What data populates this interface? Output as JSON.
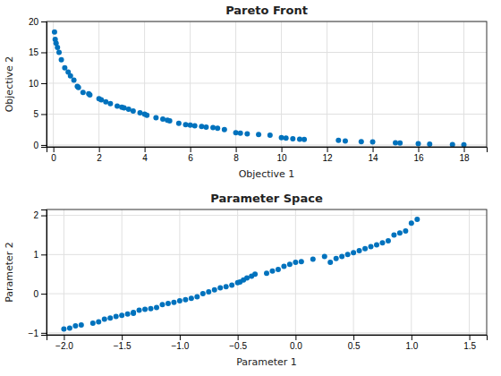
{
  "chart_data": [
    {
      "type": "scatter",
      "title": "Pareto Front",
      "xlabel": "Objective 1",
      "ylabel": "Objective 2",
      "color": "#0072BD",
      "grid": true,
      "xlim": [
        -0.3,
        19.0
      ],
      "ylim": [
        -0.3,
        20.0
      ],
      "xticks": [
        0,
        2,
        4,
        6,
        8,
        10,
        12,
        14,
        16,
        18
      ],
      "yticks": [
        0,
        5,
        10,
        15,
        20
      ],
      "x": [
        0.05,
        0.08,
        0.12,
        0.18,
        0.25,
        0.35,
        0.5,
        0.65,
        0.75,
        0.9,
        1.05,
        1.1,
        1.3,
        1.55,
        1.6,
        2.0,
        2.1,
        2.3,
        2.5,
        2.8,
        3.0,
        3.1,
        3.3,
        3.5,
        3.8,
        4.0,
        4.1,
        4.5,
        4.8,
        5.0,
        5.1,
        5.5,
        5.8,
        6.0,
        6.2,
        6.5,
        6.7,
        7.0,
        7.2,
        7.5,
        8.0,
        8.2,
        8.5,
        9.0,
        9.5,
        10.0,
        10.2,
        10.5,
        10.8,
        11.0,
        12.5,
        12.8,
        13.5,
        14.0,
        15.0,
        15.2,
        16.0,
        16.5,
        17.5,
        18.0
      ],
      "values": [
        18.3,
        17.1,
        16.5,
        15.8,
        15.0,
        13.8,
        12.5,
        11.8,
        11.2,
        10.5,
        9.5,
        9.3,
        8.5,
        8.3,
        8.1,
        7.5,
        7.3,
        7.0,
        6.7,
        6.3,
        6.1,
        6.0,
        5.8,
        5.5,
        5.2,
        5.0,
        4.8,
        4.4,
        4.2,
        4.0,
        3.9,
        3.5,
        3.3,
        3.2,
        3.1,
        3.0,
        2.9,
        2.8,
        2.7,
        2.5,
        2.0,
        1.9,
        1.8,
        1.7,
        1.6,
        1.2,
        1.1,
        1.0,
        0.95,
        0.9,
        0.75,
        0.65,
        0.55,
        0.5,
        0.35,
        0.3,
        0.2,
        0.15,
        0.05,
        0.04
      ]
    },
    {
      "type": "scatter",
      "title": "Parameter Space",
      "xlabel": "Parameter 1",
      "ylabel": "Parameter 2",
      "color": "#0072BD",
      "grid": true,
      "xlim": [
        -2.15,
        1.65
      ],
      "ylim": [
        -1.05,
        2.15
      ],
      "xticks": [
        {
          "value": -2.0,
          "label": "−2.0"
        },
        {
          "value": -1.5,
          "label": "−1.5"
        },
        {
          "value": -1.0,
          "label": "−1.0"
        },
        {
          "value": -0.5,
          "label": "−0.5"
        },
        {
          "value": 0.0,
          "label": "0.0"
        },
        0.5,
        {
          "value": 1.0,
          "label": "1.0"
        },
        {
          "value": 1.5,
          "label": "1.5"
        }
      ],
      "yticks": [
        {
          "value": -1,
          "label": "−1"
        },
        0,
        1,
        2
      ],
      "x": [
        -2.0,
        -1.95,
        -1.9,
        -1.85,
        -1.75,
        -1.7,
        -1.65,
        -1.6,
        -1.55,
        -1.5,
        -1.45,
        -1.4,
        -1.4,
        -1.35,
        -1.3,
        -1.25,
        -1.2,
        -1.15,
        -1.1,
        -1.05,
        -1.0,
        -0.95,
        -0.9,
        -0.85,
        -0.8,
        -0.75,
        -0.7,
        -0.65,
        -0.6,
        -0.55,
        -0.5,
        -0.48,
        -0.45,
        -0.42,
        -0.38,
        -0.35,
        -0.25,
        -0.2,
        -0.15,
        -0.1,
        -0.05,
        0.0,
        0.05,
        0.15,
        0.25,
        0.3,
        0.35,
        0.4,
        0.45,
        0.5,
        0.55,
        0.6,
        0.65,
        0.7,
        0.75,
        0.8,
        0.85,
        0.9,
        0.95,
        1.0,
        1.05
      ],
      "values": [
        -0.9,
        -0.88,
        -0.82,
        -0.8,
        -0.75,
        -0.72,
        -0.65,
        -0.62,
        -0.58,
        -0.55,
        -0.52,
        -0.5,
        -0.48,
        -0.42,
        -0.4,
        -0.38,
        -0.35,
        -0.28,
        -0.25,
        -0.22,
        -0.18,
        -0.15,
        -0.12,
        -0.08,
        0.0,
        0.05,
        0.1,
        0.15,
        0.18,
        0.22,
        0.28,
        0.3,
        0.35,
        0.4,
        0.45,
        0.5,
        0.52,
        0.58,
        0.62,
        0.7,
        0.75,
        0.8,
        0.82,
        0.88,
        0.95,
        0.8,
        0.9,
        0.95,
        1.0,
        1.05,
        1.1,
        1.15,
        1.2,
        1.25,
        1.3,
        1.35,
        1.5,
        1.55,
        1.6,
        1.8,
        1.9
      ]
    }
  ]
}
